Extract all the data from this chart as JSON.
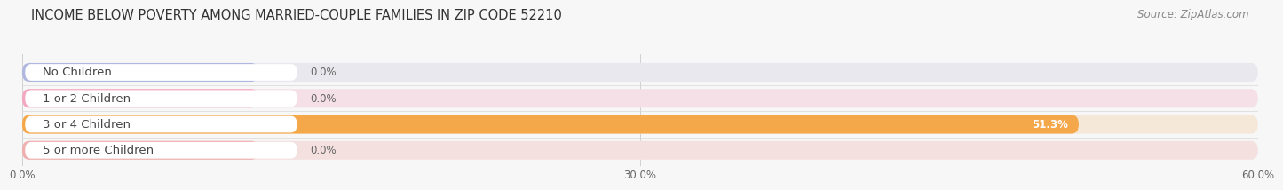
{
  "title": "INCOME BELOW POVERTY AMONG MARRIED-COUPLE FAMILIES IN ZIP CODE 52210",
  "source": "Source: ZipAtlas.com",
  "categories": [
    "No Children",
    "1 or 2 Children",
    "3 or 4 Children",
    "5 or more Children"
  ],
  "values": [
    0.0,
    0.0,
    51.3,
    0.0
  ],
  "bar_colors": [
    "#b0b8e0",
    "#f4a8c0",
    "#f5a84a",
    "#f0b0b0"
  ],
  "bar_bg_colors": [
    "#e8e8ee",
    "#f5e0e8",
    "#f5e8d8",
    "#f5e0e0"
  ],
  "xlim": [
    0,
    60
  ],
  "xticks": [
    0.0,
    30.0,
    60.0
  ],
  "xtick_labels": [
    "0.0%",
    "30.0%",
    "60.0%"
  ],
  "bg_color": "#f7f7f7",
  "title_fontsize": 10.5,
  "source_fontsize": 8.5,
  "label_fontsize": 9.5,
  "value_fontsize": 8.5
}
